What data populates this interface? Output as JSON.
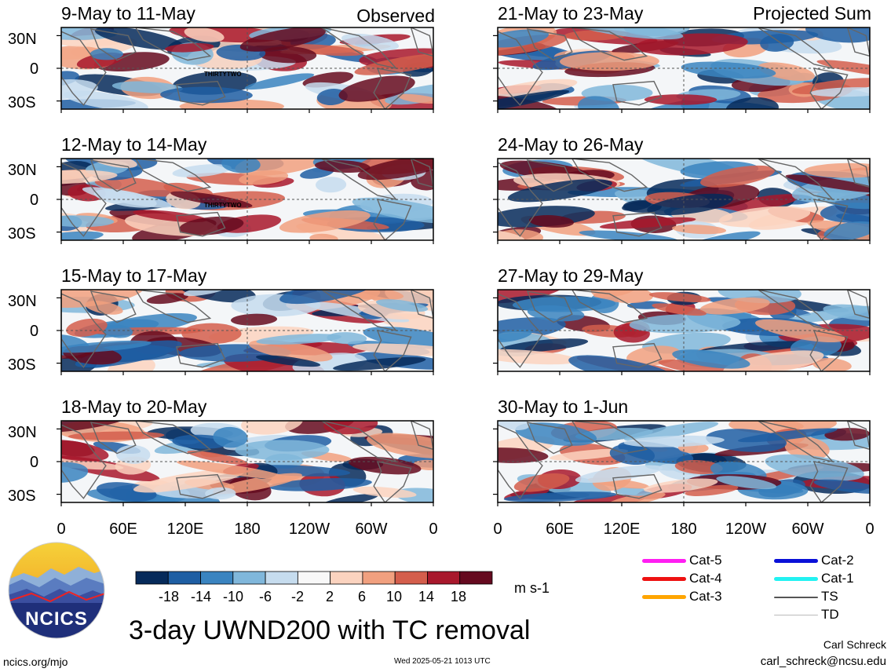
{
  "panels": {
    "left": [
      {
        "title": "9-May to 11-May",
        "tag": "Observed",
        "tc_label": "THIRTYTWO"
      },
      {
        "title": "12-May to 14-May",
        "tc_label": "THIRTYTWO"
      },
      {
        "title": "15-May to 17-May"
      },
      {
        "title": "18-May to 20-May"
      }
    ],
    "right": [
      {
        "title": "21-May to 23-May",
        "tag": "Projected Sum"
      },
      {
        "title": "24-May to 26-May"
      },
      {
        "title": "27-May to 29-May"
      },
      {
        "title": "30-May to 1-Jun"
      }
    ]
  },
  "lat_labels": [
    "30N",
    "0",
    "30S"
  ],
  "lon_labels": [
    "0",
    "60E",
    "120E",
    "180",
    "120W",
    "60W",
    "0"
  ],
  "colorbar": {
    "ticks": [
      "-18",
      "-14",
      "-10",
      "-6",
      "-2",
      "2",
      "6",
      "10",
      "14",
      "18"
    ],
    "colors": [
      "#062a5a",
      "#1e5ea3",
      "#3a84c0",
      "#80b7db",
      "#c6dcee",
      "#f8f8f8",
      "#fbd3bf",
      "#f1a07f",
      "#d45e4c",
      "#a8182c",
      "#650a1f"
    ],
    "units": "m s-1"
  },
  "legend": [
    {
      "label": "Cat-5",
      "color": "#ff1ef2"
    },
    {
      "label": "Cat-4",
      "color": "#ee1111"
    },
    {
      "label": "Cat-3",
      "color": "#ffa500"
    },
    {
      "label": "Cat-2",
      "color": "#0a10d8"
    },
    {
      "label": "Cat-1",
      "color": "#22f2f2"
    },
    {
      "label": "TS",
      "color": "#555555"
    },
    {
      "label": "TD",
      "color": "#bbbbbb"
    }
  ],
  "main_title": "3-day UWND200 with TC removal",
  "logo_text": "NCICS",
  "footer": {
    "left": "ncics.org/mjo",
    "center": "Wed 2025-05-21 1013 UTC",
    "author": "Carl Schreck",
    "email": "carl_schreck@ncsu.edu"
  }
}
